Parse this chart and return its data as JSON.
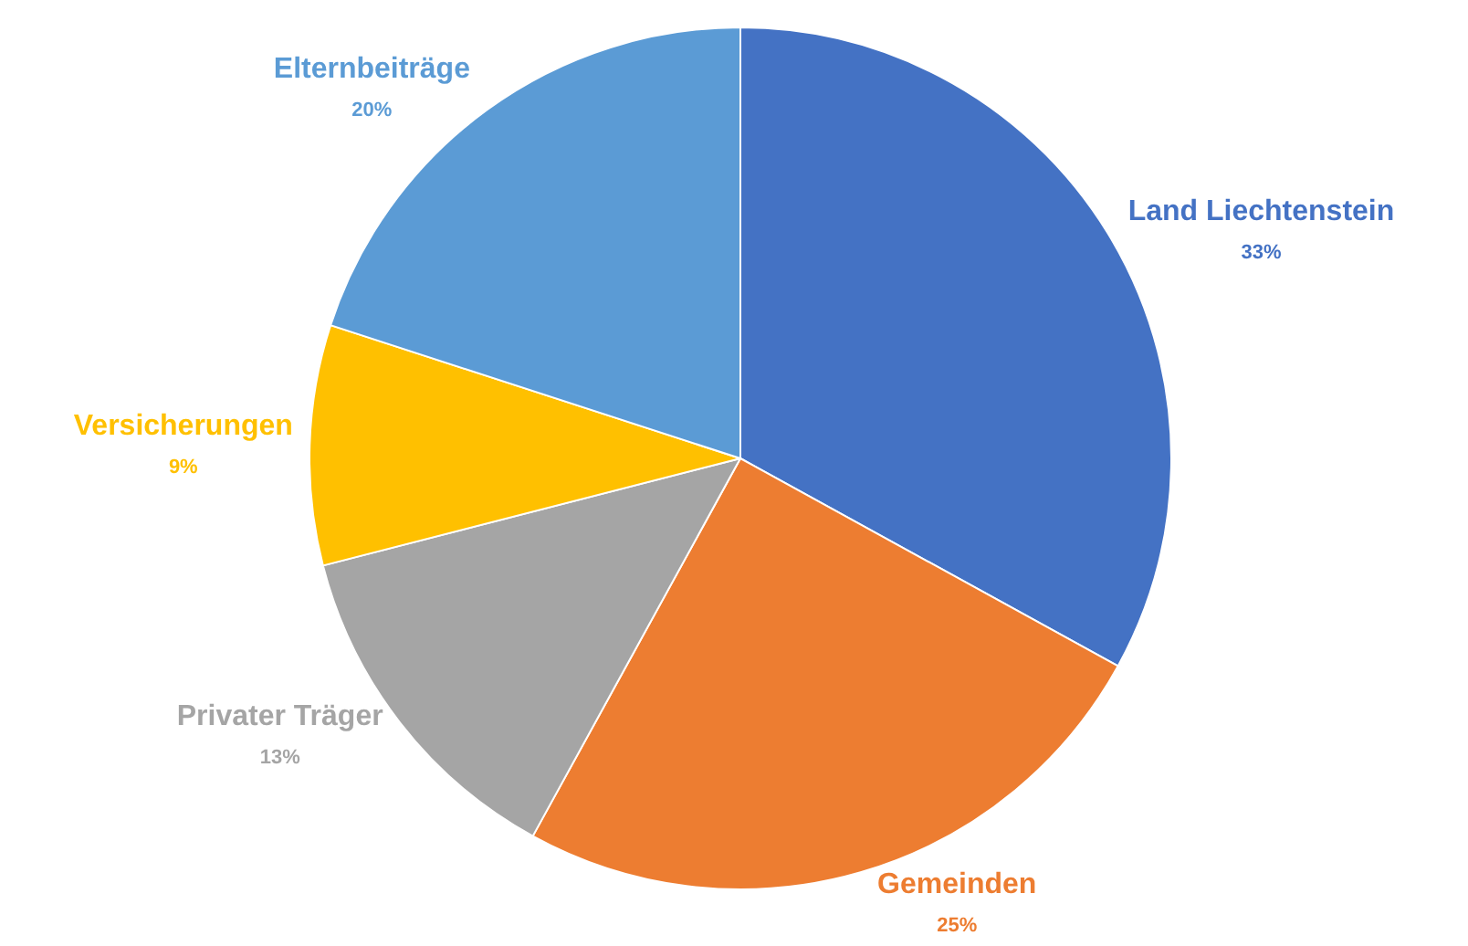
{
  "chart_data": {
    "type": "pie",
    "categories": [
      "Land Liechtenstein",
      "Gemeinden",
      "Privater Träger",
      "Versicherungen",
      "Elternbeiträge"
    ],
    "values": [
      33,
      25,
      13,
      9,
      20
    ],
    "value_labels": [
      "33%",
      "25%",
      "13%",
      "9%",
      "20%"
    ],
    "colors": [
      "#4472c4",
      "#ed7d31",
      "#a5a5a5",
      "#ffc000",
      "#5b9bd5"
    ],
    "legend": false
  }
}
